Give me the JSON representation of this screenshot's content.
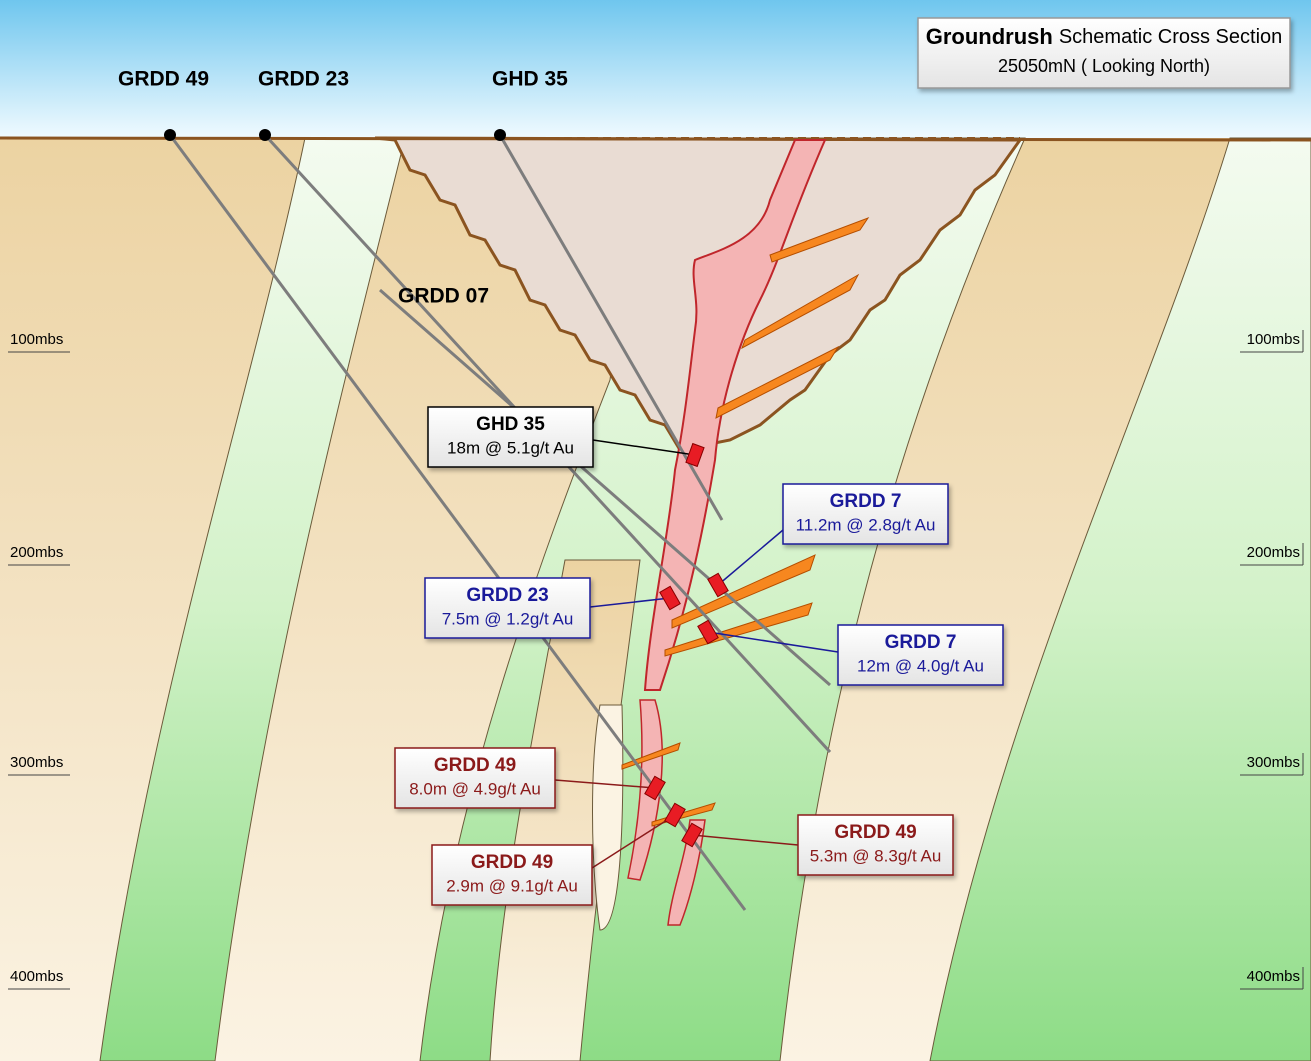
{
  "title": {
    "name": "Groundrush",
    "rest": "Schematic Cross Section",
    "subtitle": "25050mN ( Looking North)"
  },
  "collars": [
    "GRDD 49",
    "GRDD 23",
    "GHD 35"
  ],
  "hole_label": "GRDD 07",
  "depth_labels": [
    "100mbs",
    "200mbs",
    "300mbs",
    "400mbs"
  ],
  "intercepts": [
    {
      "hole": "GHD 35",
      "result": "18m @ 5.1g/t Au"
    },
    {
      "hole": "GRDD 7",
      "result": "11.2m @ 2.8g/t Au"
    },
    {
      "hole": "GRDD 23",
      "result": "7.5m @ 1.2g/t Au"
    },
    {
      "hole": "GRDD 7",
      "result": "12m @ 4.0g/t Au"
    },
    {
      "hole": "GRDD 49",
      "result": "8.0m @ 4.9g/t Au"
    },
    {
      "hole": "GRDD 49",
      "result": "5.3m @ 8.3g/t Au"
    },
    {
      "hole": "GRDD 49",
      "result": "2.9m @ 9.1g/t Au"
    }
  ]
}
